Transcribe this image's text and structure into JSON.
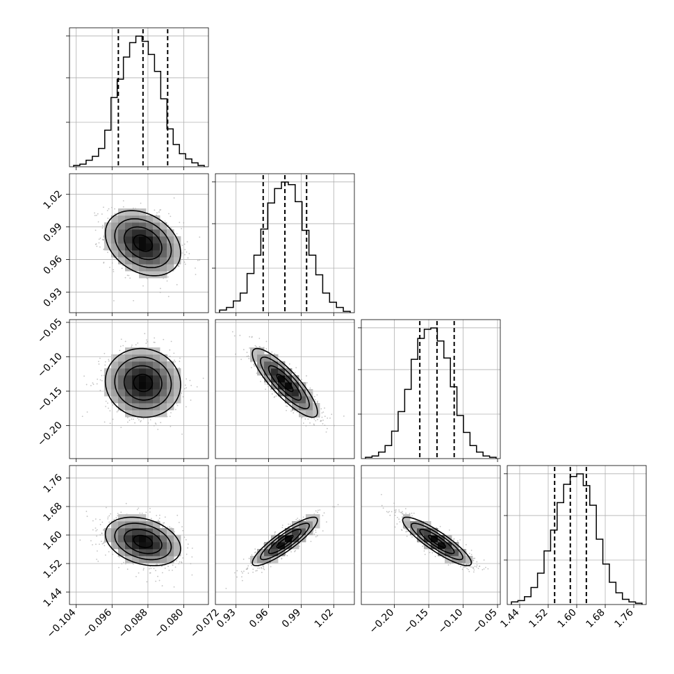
{
  "chart_data": {
    "type": "corner",
    "title": "",
    "parameters": [
      {
        "ticks": [
          -0.104,
          -0.096,
          -0.088,
          -0.08,
          -0.072
        ],
        "tick_labels": [
          "−0.104",
          "−0.096",
          "−0.088",
          "−0.080",
          "−0.072"
        ],
        "range": [
          -0.1055,
          -0.0745
        ]
      },
      {
        "ticks": [
          0.93,
          0.96,
          0.99,
          1.02
        ],
        "tick_labels": [
          "0.93",
          "0.96",
          "0.99",
          "1.02"
        ],
        "range": [
          0.911,
          1.039
        ]
      },
      {
        "ticks": [
          -0.2,
          -0.15,
          -0.1,
          -0.05
        ],
        "tick_labels": [
          "−0.20",
          "−0.15",
          "−0.10",
          "−0.05"
        ],
        "range": [
          -0.248,
          -0.046
        ]
      },
      {
        "ticks": [
          1.44,
          1.52,
          1.6,
          1.68,
          1.76
        ],
        "tick_labels": [
          "1.44",
          "1.52",
          "1.60",
          "1.68",
          "1.76"
        ],
        "range": [
          1.405,
          1.795
        ]
      }
    ],
    "marginals": [
      {
        "quantiles": [
          -0.0946,
          -0.0891,
          -0.0836
        ],
        "counts": [
          0.01,
          0.02,
          0.05,
          0.08,
          0.14,
          0.28,
          0.53,
          0.67,
          0.84,
          0.95,
          1.0,
          0.96,
          0.86,
          0.73,
          0.52,
          0.29,
          0.17,
          0.1,
          0.06,
          0.03,
          0.01
        ]
      },
      {
        "quantiles": [
          0.955,
          0.975,
          0.995
        ],
        "counts": [
          0.02,
          0.04,
          0.09,
          0.15,
          0.3,
          0.44,
          0.64,
          0.84,
          0.95,
          1.0,
          0.98,
          0.85,
          0.63,
          0.44,
          0.29,
          0.15,
          0.08,
          0.04,
          0.01
        ]
      },
      {
        "quantiles": [
          -0.163,
          -0.138,
          -0.113
        ],
        "counts": [
          0.01,
          0.02,
          0.05,
          0.1,
          0.21,
          0.36,
          0.53,
          0.76,
          0.92,
          0.99,
          1.0,
          0.9,
          0.77,
          0.55,
          0.33,
          0.2,
          0.1,
          0.05,
          0.02,
          0.01
        ]
      },
      {
        "quantiles": [
          1.538,
          1.582,
          1.627
        ],
        "counts": [
          0.02,
          0.03,
          0.06,
          0.13,
          0.24,
          0.41,
          0.57,
          0.78,
          0.92,
          0.98,
          1.0,
          0.91,
          0.76,
          0.5,
          0.31,
          0.17,
          0.09,
          0.04,
          0.02,
          0.01
        ]
      }
    ],
    "joint": [
      {
        "row": 1,
        "col": 0,
        "center": [
          -0.0891,
          0.975
        ],
        "sd": [
          0.0042,
          0.015
        ],
        "rho": -0.3
      },
      {
        "row": 2,
        "col": 0,
        "center": [
          -0.0891,
          -0.138
        ],
        "sd": [
          0.0042,
          0.025
        ],
        "rho": -0.05
      },
      {
        "row": 2,
        "col": 1,
        "center": [
          0.975,
          -0.138
        ],
        "sd": [
          0.015,
          0.025
        ],
        "rho": -0.85
      },
      {
        "row": 3,
        "col": 0,
        "center": [
          -0.0891,
          1.582
        ],
        "sd": [
          0.0042,
          0.034
        ],
        "rho": -0.3
      },
      {
        "row": 3,
        "col": 1,
        "center": [
          0.975,
          1.582
        ],
        "sd": [
          0.015,
          0.034
        ],
        "rho": 0.88
      },
      {
        "row": 3,
        "col": 2,
        "center": [
          -0.138,
          1.582
        ],
        "sd": [
          0.025,
          0.034
        ],
        "rho": -0.88
      }
    ],
    "contour_levels_sigma": [
      0.5,
      1.0,
      1.5,
      2.0
    ],
    "grid": true,
    "colors": {
      "frame": "#000000",
      "grid": "#b0b0b0",
      "points": "#a8a8a8",
      "hist": "#000000"
    }
  }
}
